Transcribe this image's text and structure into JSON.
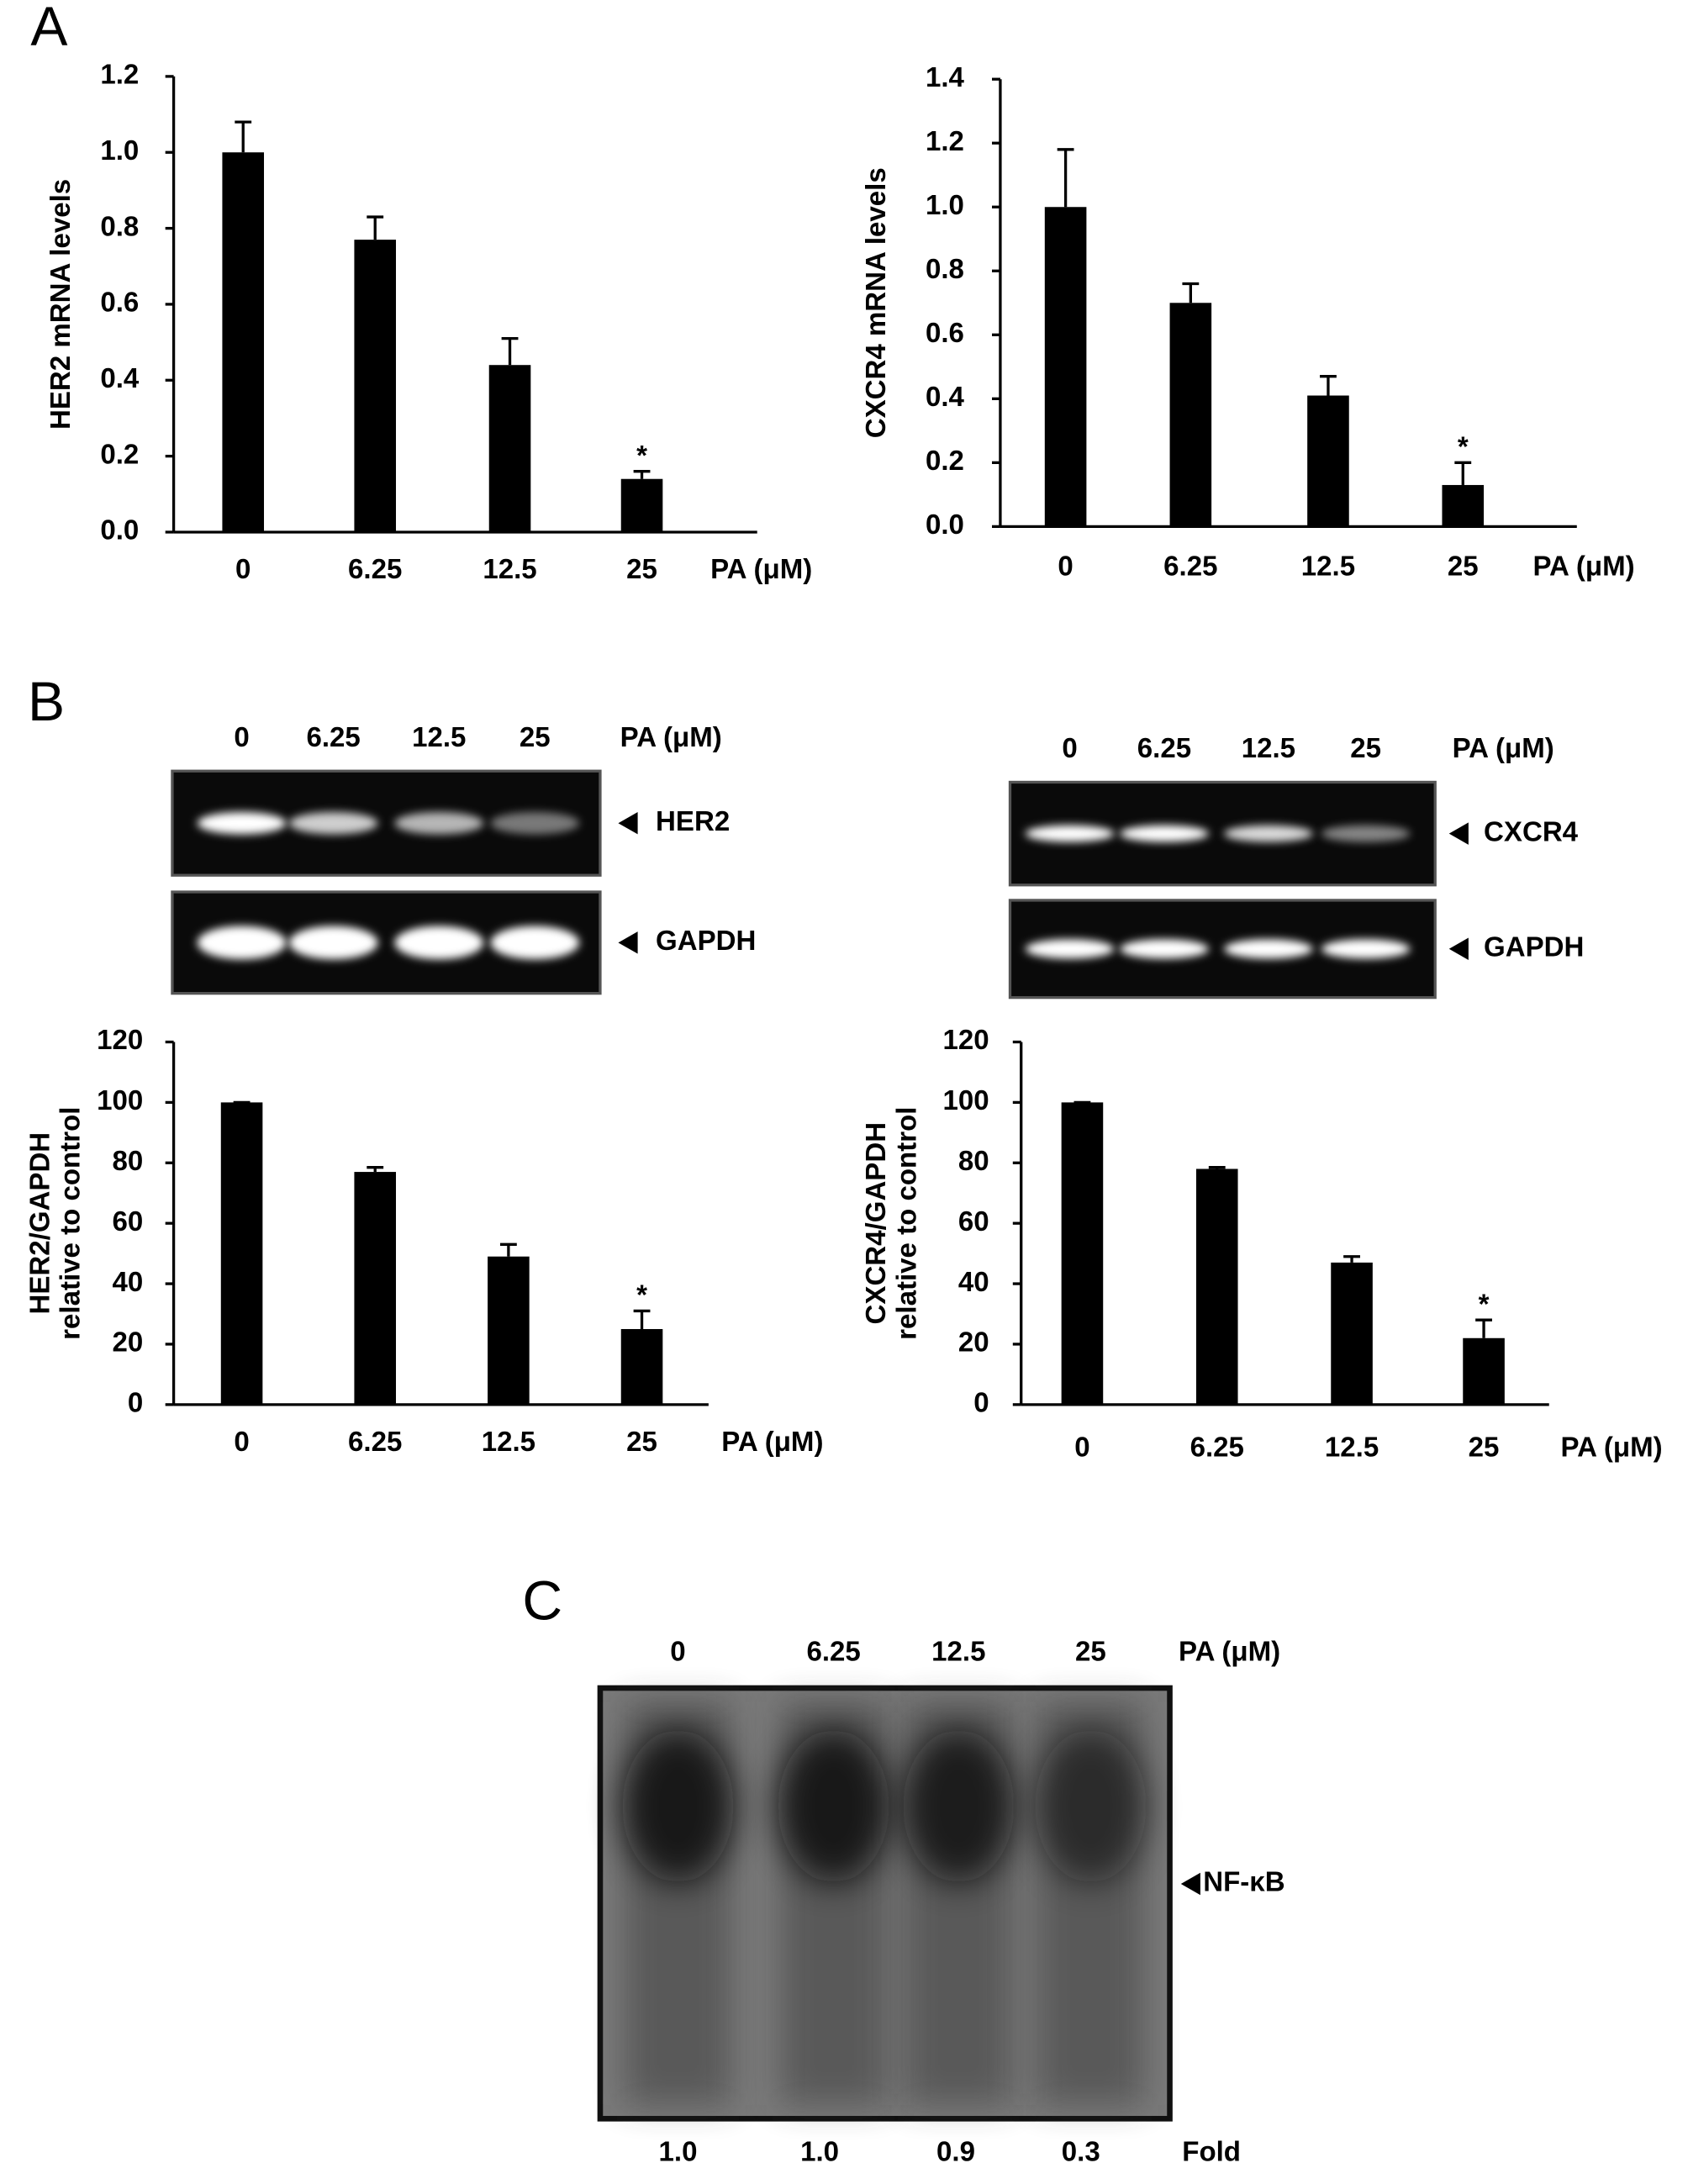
{
  "panel_labels": [
    "A",
    "B",
    "C"
  ],
  "chart_data": [
    {
      "type": "bar",
      "y_label": "HER2  mRNA  levels",
      "x_label": "PA  (μM)",
      "categories": [
        "0",
        "6.25",
        "12.5",
        "25"
      ],
      "values": [
        1.0,
        0.77,
        0.44,
        0.14
      ],
      "errors": [
        0.08,
        0.06,
        0.07,
        0.02
      ],
      "significance": [
        null,
        null,
        null,
        "*"
      ],
      "color": "#000000",
      "ylim": [
        0,
        1.2
      ],
      "yticks": [
        {
          "value": 0,
          "label": "0.0"
        },
        0.2,
        0.4,
        0.6,
        0.8,
        {
          "value": 1,
          "label": "1.0"
        },
        1.2
      ]
    },
    {
      "type": "bar",
      "y_label": "CXCR4  mRNA  levels",
      "x_label": "PA  (μM)",
      "categories": [
        "0",
        "6.25",
        "12.5",
        "25"
      ],
      "values": [
        1.0,
        0.7,
        0.41,
        0.13
      ],
      "errors": [
        0.18,
        0.06,
        0.06,
        0.07
      ],
      "significance": [
        null,
        null,
        null,
        "*"
      ],
      "color": "#000000",
      "ylim": [
        0,
        1.4
      ],
      "yticks": [
        {
          "value": 0,
          "label": "0.0"
        },
        0.2,
        0.4,
        0.6,
        0.8,
        {
          "value": 1,
          "label": "1.0"
        },
        1.2,
        1.4
      ]
    },
    {
      "type": "bar",
      "y_label": [
        "HER2/GAPDH",
        "relative to control"
      ],
      "x_label": "PA (μM)",
      "categories": [
        "0",
        "6.25",
        "12.5",
        "25"
      ],
      "values": [
        100,
        77,
        49,
        25
      ],
      "errors": [
        0,
        1.5,
        4,
        6
      ],
      "significance": [
        null,
        null,
        null,
        "*"
      ],
      "color": "#000000",
      "ylim": [
        0,
        120
      ],
      "yticks": [
        0,
        20,
        40,
        60,
        80,
        100,
        120
      ]
    },
    {
      "type": "bar",
      "y_label": [
        "CXCR4/GAPDH",
        "relative to control"
      ],
      "x_label": "PA (μM)",
      "categories": [
        "0",
        "6.25",
        "12.5",
        "25"
      ],
      "values": [
        100,
        78,
        47,
        22
      ],
      "errors": [
        0,
        0.5,
        2,
        6
      ],
      "significance": [
        null,
        null,
        null,
        "*"
      ],
      "color": "#000000",
      "ylim": [
        0,
        120
      ],
      "yticks": [
        0,
        20,
        40,
        60,
        80,
        100,
        120
      ]
    }
  ],
  "gels": [
    {
      "lanes_title": "PA (μM)",
      "lanes": [
        "0",
        "6.25",
        "12.5",
        "25"
      ],
      "bands": [
        "HER2",
        "GAPDH"
      ]
    },
    {
      "lanes_title": "PA (μM)",
      "lanes": [
        "0",
        "6.25",
        "12.5",
        "25"
      ],
      "bands": [
        "CXCR4",
        "GAPDH"
      ]
    }
  ],
  "emsa": {
    "lanes_title": "PA (μM)",
    "lanes": [
      "0",
      "6.25",
      "12.5",
      "25"
    ],
    "band": "NF-κB",
    "fold_title": "Fold",
    "fold": [
      "1.0",
      "1.0",
      "0.9",
      "0.3"
    ]
  }
}
